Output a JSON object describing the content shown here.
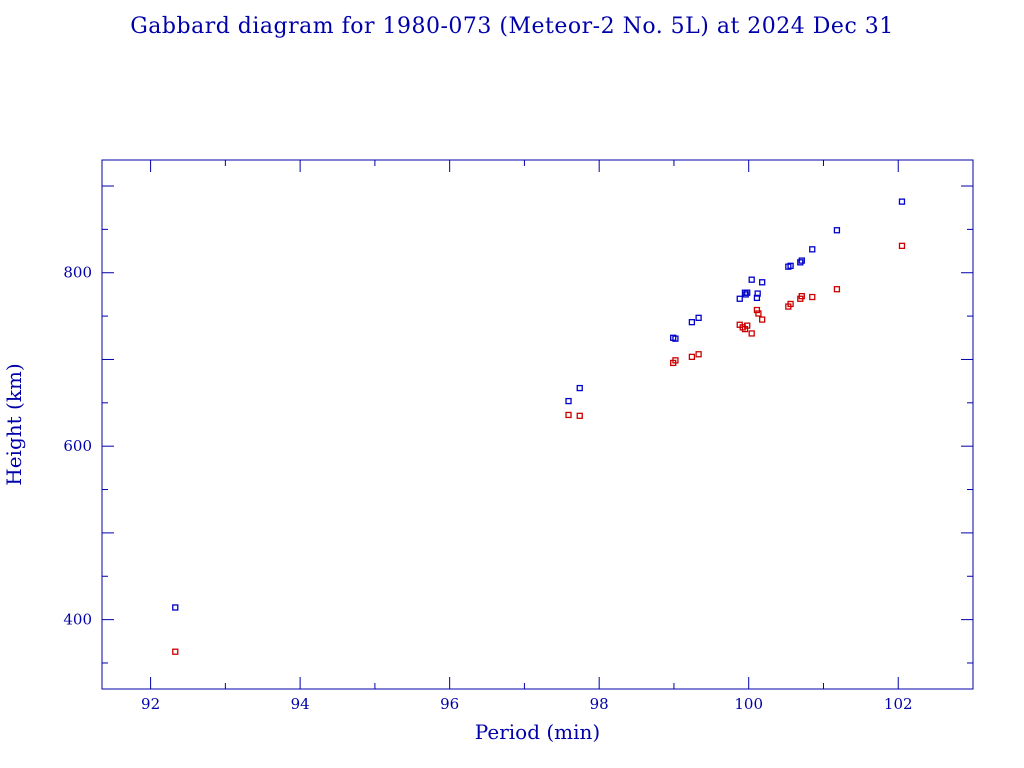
{
  "chart_data": {
    "type": "scatter",
    "title": "Gabbard diagram for 1980-073 (Meteor-2 No. 5L) at 2024 Dec 31",
    "xlabel": "Period (min)",
    "ylabel": "Height (km)",
    "xlim": [
      91.35,
      103.0
    ],
    "ylim": [
      320,
      930
    ],
    "xticks": [
      92,
      94,
      96,
      98,
      100,
      102
    ],
    "yticks": [
      400,
      600,
      800
    ],
    "grid": false,
    "colors": {
      "apogee": "#0000cc",
      "perigee": "#cc0000",
      "axis": "#0000aa"
    },
    "series": [
      {
        "role": "apogee",
        "points": [
          [
            92.33,
            414
          ],
          [
            97.59,
            652
          ],
          [
            97.74,
            667
          ],
          [
            98.99,
            725
          ],
          [
            99.02,
            724
          ],
          [
            99.24,
            743
          ],
          [
            99.33,
            748
          ],
          [
            99.88,
            770
          ],
          [
            99.95,
            777
          ],
          [
            99.96,
            775
          ],
          [
            99.98,
            777
          ],
          [
            100.04,
            792
          ],
          [
            100.11,
            771
          ],
          [
            100.12,
            776
          ],
          [
            100.18,
            789
          ],
          [
            100.53,
            807
          ],
          [
            100.56,
            808
          ],
          [
            100.69,
            812
          ],
          [
            100.71,
            814
          ],
          [
            100.85,
            827
          ],
          [
            101.18,
            849
          ],
          [
            102.05,
            882
          ]
        ]
      },
      {
        "role": "perigee",
        "points": [
          [
            92.33,
            363
          ],
          [
            97.59,
            636
          ],
          [
            97.74,
            635
          ],
          [
            98.99,
            696
          ],
          [
            99.02,
            699
          ],
          [
            99.24,
            703
          ],
          [
            99.33,
            706
          ],
          [
            99.88,
            740
          ],
          [
            99.92,
            737
          ],
          [
            99.95,
            735
          ],
          [
            99.98,
            739
          ],
          [
            100.04,
            730
          ],
          [
            100.11,
            757
          ],
          [
            100.13,
            753
          ],
          [
            100.18,
            746
          ],
          [
            100.53,
            761
          ],
          [
            100.56,
            764
          ],
          [
            100.69,
            770
          ],
          [
            100.71,
            773
          ],
          [
            100.85,
            772
          ],
          [
            101.18,
            781
          ],
          [
            102.05,
            831
          ]
        ]
      }
    ]
  }
}
